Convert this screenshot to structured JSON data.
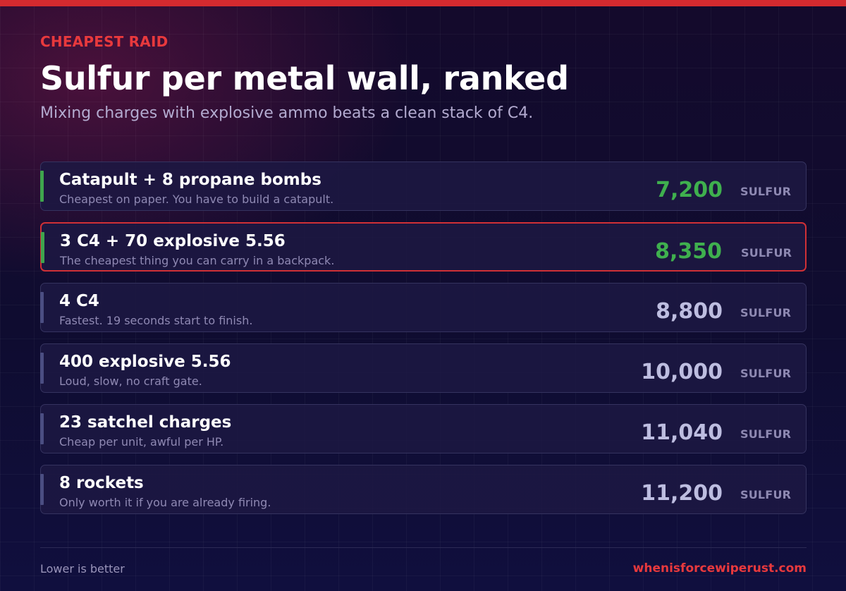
{
  "header": {
    "eyebrow": "CHEAPEST RAID",
    "title": "Sulfur per metal wall, ranked",
    "subtitle": "Mixing charges with explosive ammo beats a clean stack of C4."
  },
  "colors": {
    "brand_red": "#d42a2f",
    "cheap_green": "#3fb04e",
    "default_accent": "#4b4e82",
    "background": "#0f0c30"
  },
  "rows": [
    {
      "title": "Catapult + 8 propane bombs",
      "note": "Cheapest on paper. You have to build a catapult.",
      "value": "7,200",
      "unit": "SULFUR",
      "cheap": true,
      "highlight": false
    },
    {
      "title": "3 C4 + 70 explosive 5.56",
      "note": "The cheapest thing you can carry in a backpack.",
      "value": "8,350",
      "unit": "SULFUR",
      "cheap": true,
      "highlight": true
    },
    {
      "title": "4 C4",
      "note": "Fastest. 19 seconds start to finish.",
      "value": "8,800",
      "unit": "SULFUR",
      "cheap": false,
      "highlight": false
    },
    {
      "title": "400 explosive 5.56",
      "note": "Loud, slow, no craft gate.",
      "value": "10,000",
      "unit": "SULFUR",
      "cheap": false,
      "highlight": false
    },
    {
      "title": "23 satchel charges",
      "note": "Cheap per unit, awful per HP.",
      "value": "11,040",
      "unit": "SULFUR",
      "cheap": false,
      "highlight": false
    },
    {
      "title": "8 rockets",
      "note": "Only worth it if you are already firing.",
      "value": "11,200",
      "unit": "SULFUR",
      "cheap": false,
      "highlight": false
    }
  ],
  "footer": {
    "note": "Lower is better",
    "site": "whenisforcewiperust.com"
  }
}
